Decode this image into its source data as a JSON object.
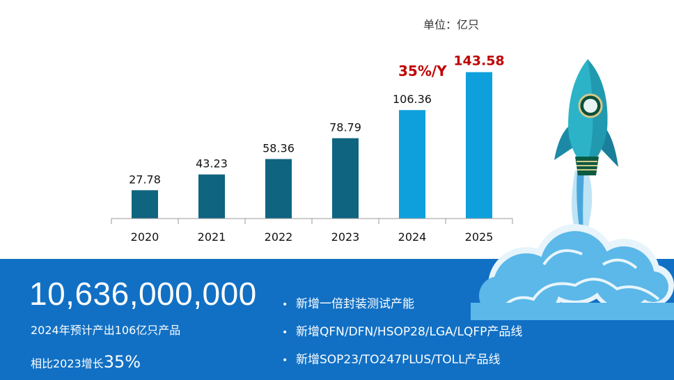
{
  "unit_label": "单位：亿只",
  "growth_label": "35%/Y",
  "chart_data": {
    "type": "bar",
    "categories": [
      "2020",
      "2021",
      "2022",
      "2023",
      "2024",
      "2025"
    ],
    "values": [
      27.78,
      43.23,
      58.36,
      78.79,
      106.36,
      143.58
    ],
    "value_labels": [
      "27.78",
      "43.23",
      "58.36",
      "78.79",
      "106.36",
      "143.58"
    ],
    "ylim": [
      0,
      150
    ],
    "grid": false,
    "colors": {
      "actual": "#0f6480",
      "forecast": "#0ea0dc",
      "highlight_label": "#c00000",
      "default_label": "#111111"
    },
    "forecast_from_index": 4,
    "highlight_index": 5
  },
  "summary": {
    "big_number": "10,636,000,000",
    "line1": "2024年预计产出106亿只产品",
    "line2_prefix": "相比2023增长",
    "line2_value": "35%"
  },
  "bullets": [
    "新增一倍封装测试产能",
    "新增QFN/DFN/HSOP28/LGA/LQFP产品线",
    "新增SOP23/TO247PLUS/TOLL产品线"
  ],
  "colors": {
    "panel": "#1170c4",
    "rocket_body": "#2db3c8",
    "cloud": "#5bb8e8"
  }
}
